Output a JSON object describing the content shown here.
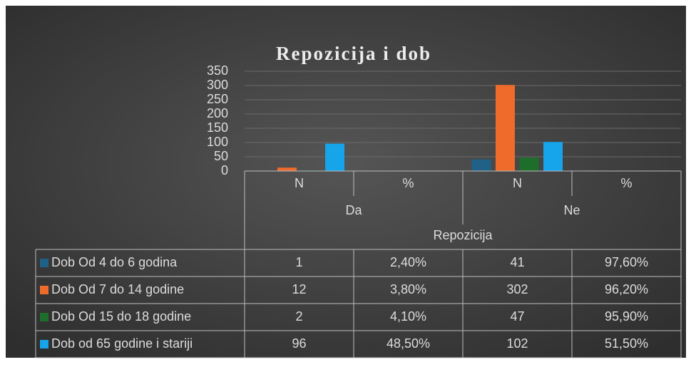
{
  "chart_data": {
    "type": "bar",
    "title": "Repozicija i dob",
    "categories": [
      "N",
      "%",
      "N",
      "%"
    ],
    "groups": [
      "Da",
      "Ne"
    ],
    "x_label": "Repozicija",
    "series": [
      {
        "name": "Dob Od 4 do 6 godina",
        "color": "#1f6187",
        "values": [
          1,
          0.024,
          41,
          0.976
        ],
        "value_labels": [
          "1",
          "2,40%",
          "41",
          "97,60%"
        ]
      },
      {
        "name": "Dob Od 7 do 14 godine",
        "color": "#ee6b2b",
        "values": [
          12,
          0.038,
          302,
          0.962
        ],
        "value_labels": [
          "12",
          "3,80%",
          "302",
          "96,20%"
        ]
      },
      {
        "name": "Dob Od 15 do 18 godine",
        "color": "#1d6e2b",
        "values": [
          2,
          0.041,
          47,
          0.959
        ],
        "value_labels": [
          "2",
          "4,10%",
          "47",
          "95,90%"
        ]
      },
      {
        "name": "Dob od 65 godine i stariji",
        "color": "#16a4ea",
        "values": [
          96,
          0.485,
          102,
          0.515
        ],
        "value_labels": [
          "96",
          "48,50%",
          "102",
          "51,50%"
        ]
      }
    ],
    "ylim": [
      0,
      350
    ],
    "yticks": [
      0,
      50,
      100,
      150,
      200,
      250,
      300,
      350
    ],
    "grid": true,
    "legend": "table"
  }
}
